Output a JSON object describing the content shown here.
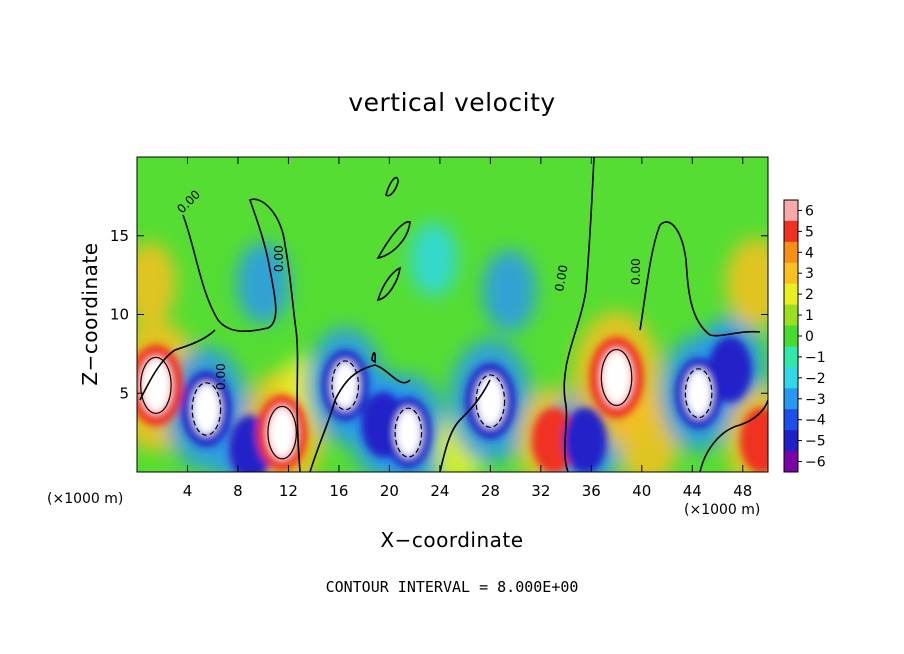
{
  "chart_data": {
    "type": "heatmap",
    "title": "vertical velocity",
    "xlabel": "X−coordinate",
    "ylabel": "Z−coordinate",
    "x_unit": "(×1000 m)",
    "y_unit": "(×1000 m)",
    "xlim": [
      0,
      50
    ],
    "ylim": [
      0,
      20
    ],
    "x_ticks": [
      4,
      8,
      12,
      16,
      20,
      24,
      28,
      32,
      36,
      40,
      44,
      48
    ],
    "y_ticks": [
      5,
      10,
      15
    ],
    "colorbar": {
      "min": -6,
      "max": 6,
      "ticks": [
        "6",
        "5",
        "4",
        "3",
        "2",
        "1",
        "0",
        "−1",
        "−2",
        "−3",
        "−4",
        "−5",
        "−6"
      ]
    },
    "contour_labels": [
      "0.00",
      "0.00",
      "0.00",
      "0.00",
      "0.00",
      "0.00"
    ],
    "footer": "CONTOUR INTERVAL =  8.000E+00",
    "features": [
      {
        "x": 1.5,
        "z": 5.5,
        "w": 9
      },
      {
        "x": 5.5,
        "z": 4.0,
        "w": -8
      },
      {
        "x": 9.0,
        "z": 1.5,
        "w": -6
      },
      {
        "x": 11.5,
        "z": 2.5,
        "w": 8
      },
      {
        "x": 13.0,
        "z": 5.0,
        "w": 2
      },
      {
        "x": 16.5,
        "z": 5.5,
        "w": -7
      },
      {
        "x": 19.5,
        "z": 3.0,
        "w": -6
      },
      {
        "x": 21.5,
        "z": 2.5,
        "w": -7
      },
      {
        "x": 25.5,
        "z": 1.5,
        "w": 2
      },
      {
        "x": 28.0,
        "z": 4.5,
        "w": -8
      },
      {
        "x": 29.5,
        "z": 11.5,
        "w": -3
      },
      {
        "x": 33.0,
        "z": 2.0,
        "w": 6
      },
      {
        "x": 35.5,
        "z": 2.0,
        "w": -6
      },
      {
        "x": 38.0,
        "z": 6.0,
        "w": 9
      },
      {
        "x": 40.5,
        "z": 2.0,
        "w": 4
      },
      {
        "x": 44.5,
        "z": 5.0,
        "w": -7
      },
      {
        "x": 47.0,
        "z": 6.5,
        "w": -6
      },
      {
        "x": 49.5,
        "z": 2.0,
        "w": 6
      },
      {
        "x": 49.0,
        "z": 12.0,
        "w": 4
      },
      {
        "x": 1.0,
        "z": 12.0,
        "w": 3
      },
      {
        "x": 10.0,
        "z": 12.0,
        "w": -3
      },
      {
        "x": 23.5,
        "z": 13.5,
        "w": -2
      }
    ]
  }
}
